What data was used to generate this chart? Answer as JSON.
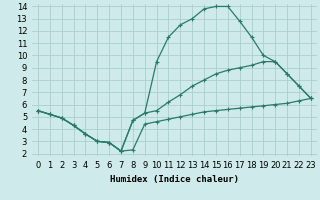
{
  "xlabel": "Humidex (Indice chaleur)",
  "bg_color": "#ceeaea",
  "grid_color": "#aacfcf",
  "line_color": "#2a7a6a",
  "xlim": [
    -0.5,
    23.5
  ],
  "ylim": [
    1.8,
    14.2
  ],
  "xticks": [
    0,
    1,
    2,
    3,
    4,
    5,
    6,
    7,
    8,
    9,
    10,
    11,
    12,
    13,
    14,
    15,
    16,
    17,
    18,
    19,
    20,
    21,
    22,
    23
  ],
  "yticks": [
    2,
    3,
    4,
    5,
    6,
    7,
    8,
    9,
    10,
    11,
    12,
    13,
    14
  ],
  "line_bottom_x": [
    0,
    1,
    2,
    3,
    4,
    5,
    6,
    7,
    8,
    9,
    10,
    11,
    12,
    13,
    14,
    15,
    16,
    17,
    18,
    19,
    20,
    21,
    22,
    23
  ],
  "line_bottom_y": [
    5.5,
    5.2,
    4.9,
    4.3,
    3.6,
    3.0,
    2.9,
    2.2,
    2.3,
    4.4,
    4.6,
    4.8,
    5.0,
    5.2,
    5.4,
    5.5,
    5.6,
    5.7,
    5.8,
    5.9,
    6.0,
    6.1,
    6.3,
    6.5
  ],
  "line_mid_x": [
    0,
    1,
    2,
    3,
    4,
    5,
    6,
    7,
    8,
    9,
    10,
    11,
    12,
    13,
    14,
    15,
    16,
    17,
    18,
    19,
    20,
    21,
    22,
    23
  ],
  "line_mid_y": [
    5.5,
    5.2,
    4.9,
    4.3,
    3.6,
    3.0,
    2.9,
    2.2,
    4.7,
    5.3,
    5.5,
    6.2,
    6.8,
    7.5,
    8.0,
    8.5,
    8.8,
    9.0,
    9.2,
    9.5,
    9.5,
    8.5,
    7.5,
    6.5
  ],
  "line_top_x": [
    0,
    1,
    2,
    3,
    4,
    5,
    6,
    7,
    8,
    9,
    10,
    11,
    12,
    13,
    14,
    15,
    16,
    17,
    18,
    19,
    20,
    21,
    22,
    23
  ],
  "line_top_y": [
    5.5,
    5.2,
    4.9,
    4.3,
    3.6,
    3.0,
    2.9,
    2.2,
    4.7,
    5.3,
    9.5,
    11.5,
    12.5,
    13.0,
    13.8,
    14.0,
    14.0,
    12.8,
    11.5,
    10.0,
    9.5,
    8.5,
    7.5,
    6.5
  ],
  "marker": "+",
  "markersize": 3,
  "linewidth": 0.9,
  "fontsize_axis": 6,
  "fontsize_label": 6.5
}
